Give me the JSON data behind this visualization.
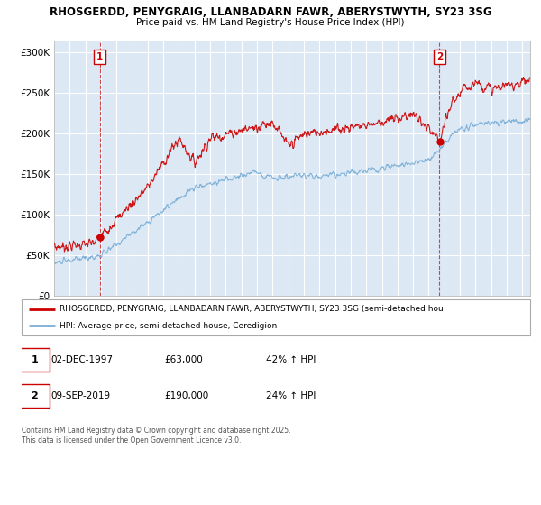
{
  "title1": "RHOSGERDD, PENYGRAIG, LLANBADARN FAWR, ABERYSTWYTH, SY23 3SG",
  "title2": "Price paid vs. HM Land Registry's House Price Index (HPI)",
  "ytick_values": [
    0,
    50000,
    100000,
    150000,
    200000,
    250000,
    300000
  ],
  "ylim": [
    0,
    315000
  ],
  "xlim_start": 1995,
  "xlim_end": 2025.5,
  "marker1_date": 1997.92,
  "marker1_label": "1",
  "marker1_price": 63000,
  "marker2_date": 2019.69,
  "marker2_label": "2",
  "marker2_price": 190000,
  "legend_line1": "RHOSGERDD, PENYGRAIG, LLANBADARN FAWR, ABERYSTWYTH, SY23 3SG (semi-detached hou",
  "legend_line2": "HPI: Average price, semi-detached house, Ceredigion",
  "annotation1_date": "02-DEC-1997",
  "annotation1_price": "£63,000",
  "annotation1_hpi": "42% ↑ HPI",
  "annotation2_date": "09-SEP-2019",
  "annotation2_price": "£190,000",
  "annotation2_hpi": "24% ↑ HPI",
  "footer": "Contains HM Land Registry data © Crown copyright and database right 2025.\nThis data is licensed under the Open Government Licence v3.0.",
  "red_color": "#cc0000",
  "blue_color": "#7aaed6",
  "bg_color": "#dce9f5",
  "grid_color": "#ffffff"
}
